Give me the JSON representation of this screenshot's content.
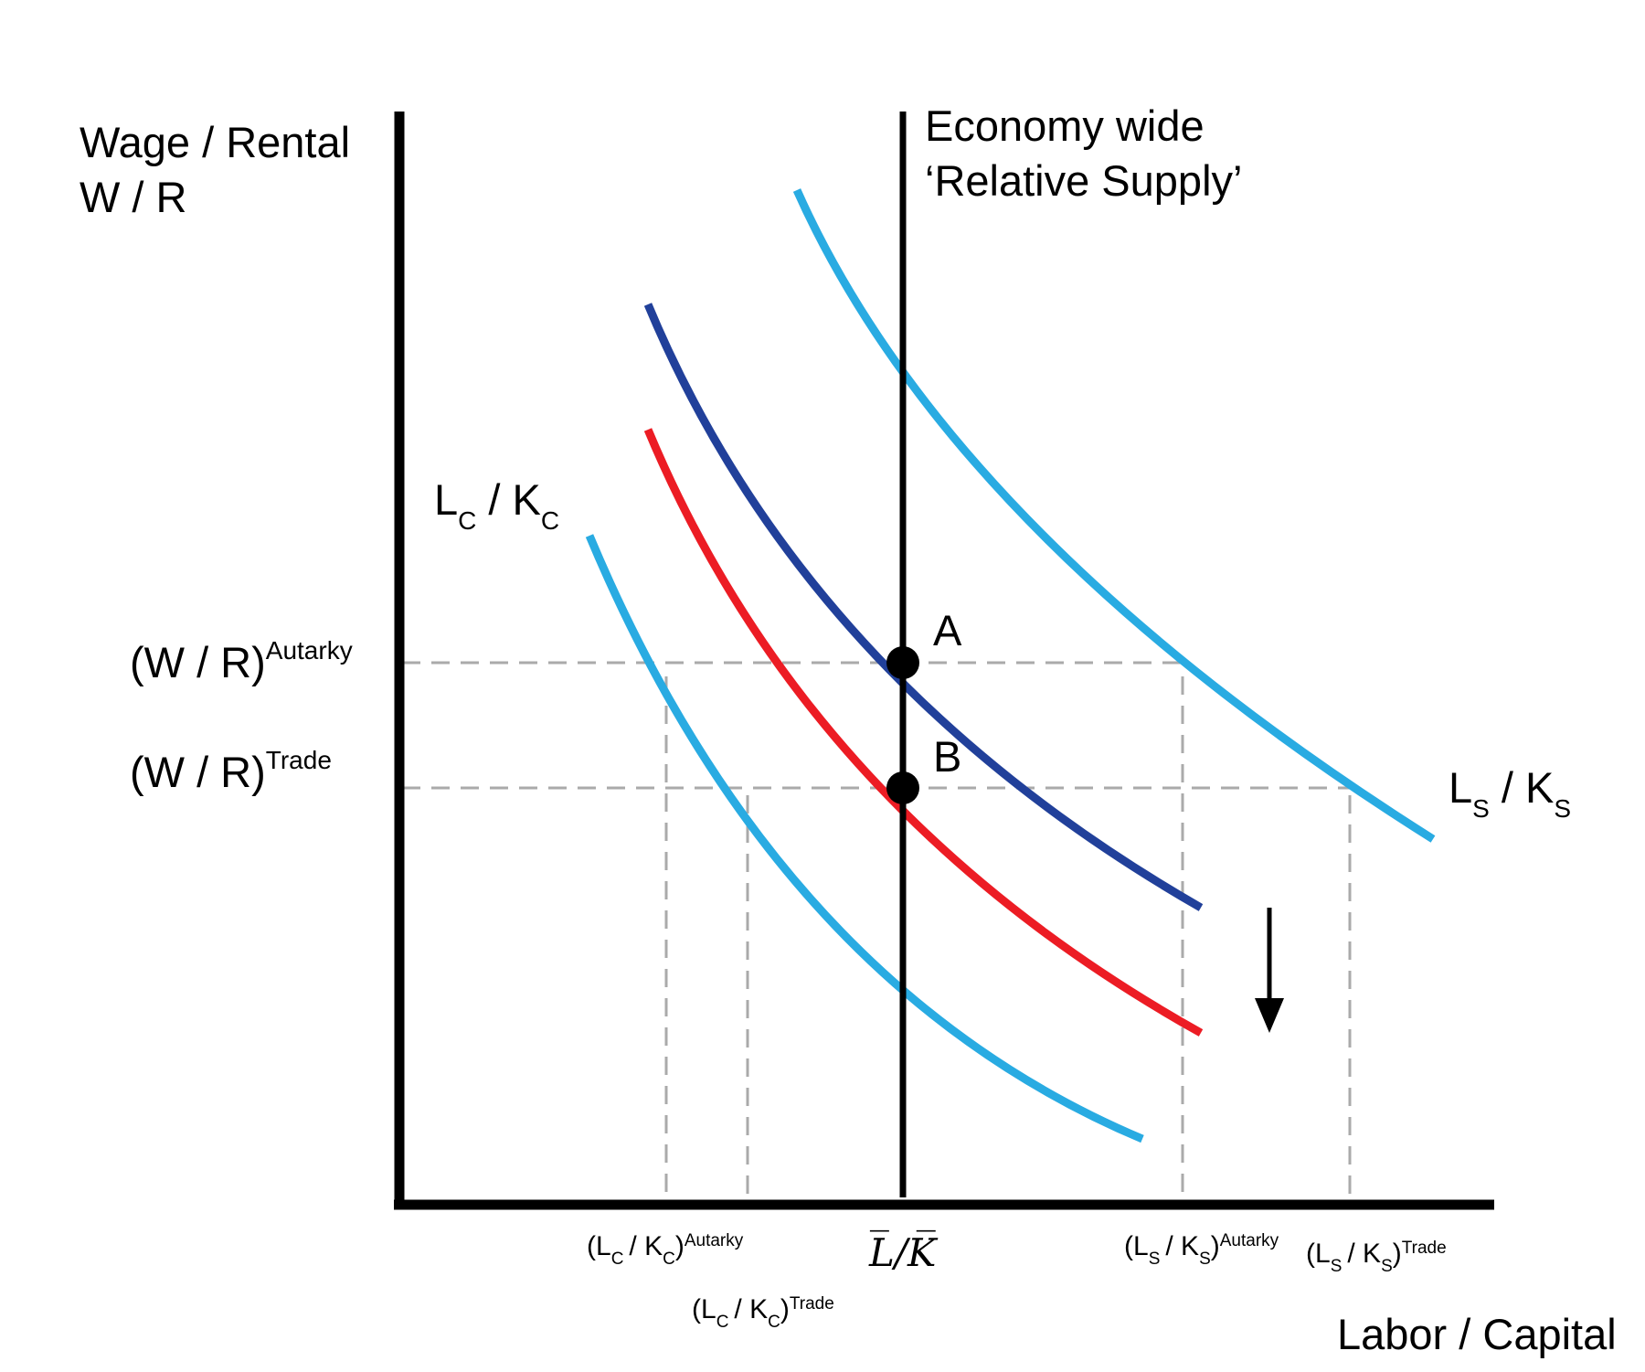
{
  "axes": {
    "y_label_line1": "Wage / Rental",
    "y_label_line2": "W / R",
    "x_label": "Labor / Capital"
  },
  "supply_line_label": {
    "line1": "Economy wide",
    "line2": "‘Relative Supply’"
  },
  "curve_labels": {
    "clothing": {
      "base": "L",
      "sub1": "C",
      "mid": " / K",
      "sub2": "C"
    },
    "steel": {
      "base": "L",
      "sub1": "S",
      "mid": " / K",
      "sub2": "S"
    }
  },
  "points": {
    "a": "A",
    "b": "B"
  },
  "y_ticks": {
    "autarky": {
      "base": "(W / R)",
      "sup": "Autarky"
    },
    "trade": {
      "base": "(W / R)",
      "sup": "Trade"
    }
  },
  "x_ticks": {
    "lc_autarky": {
      "open": "(L",
      "sub1": "C",
      "mid": "/ K",
      "sub2": "C",
      "close": ")",
      "sup": "Autarky"
    },
    "lc_trade": {
      "open": "(L",
      "sub1": "C",
      "mid": "/ K",
      "sub2": "C",
      "close": ")",
      "sup": "Trade"
    },
    "endowment": "L̅/K̅",
    "ls_autarky": {
      "open": "(L",
      "sub1": "S",
      "mid": "/ K",
      "sub2": "S",
      "close": ")",
      "sup": "Autarky"
    },
    "ls_trade": {
      "open": "(L",
      "sub1": "S",
      "mid": "/ K",
      "sub2": "S",
      "close": ")",
      "sup": "Trade"
    }
  },
  "colors": {
    "light_blue": "#29abe2",
    "dark_blue": "#21409a",
    "red": "#ec1c24",
    "dashed_guide": "#aaaaaa",
    "axis": "#000000"
  }
}
